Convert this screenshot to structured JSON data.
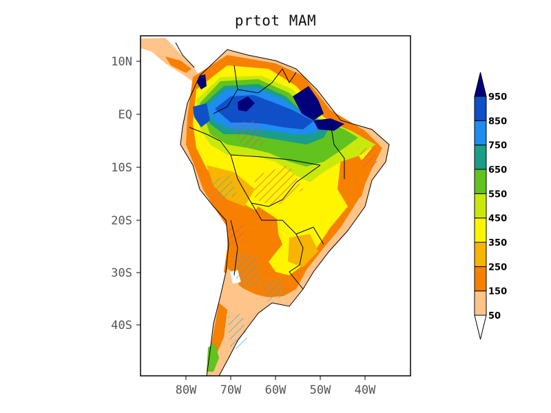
{
  "title": "prtot MAM",
  "map": {
    "lat_ticks": [
      "10N",
      "EQ",
      "10S",
      "20S",
      "30S",
      "40S"
    ],
    "lon_ticks": [
      "80W",
      "70W",
      "60W",
      "50W",
      "40W"
    ]
  },
  "colorbar": {
    "levels": [
      "50",
      "150",
      "250",
      "350",
      "450",
      "550",
      "650",
      "750",
      "850",
      "950"
    ],
    "colors": [
      "#ffffff",
      "#ffc48a",
      "#f78000",
      "#f7b400",
      "#fff500",
      "#c9e90c",
      "#62c21e",
      "#1a9e88",
      "#1e8cf0",
      "#0f50c9",
      "#00007a"
    ]
  },
  "hatch_colors": {
    "positive": "#e8505a",
    "negative": "#38a8e0"
  }
}
